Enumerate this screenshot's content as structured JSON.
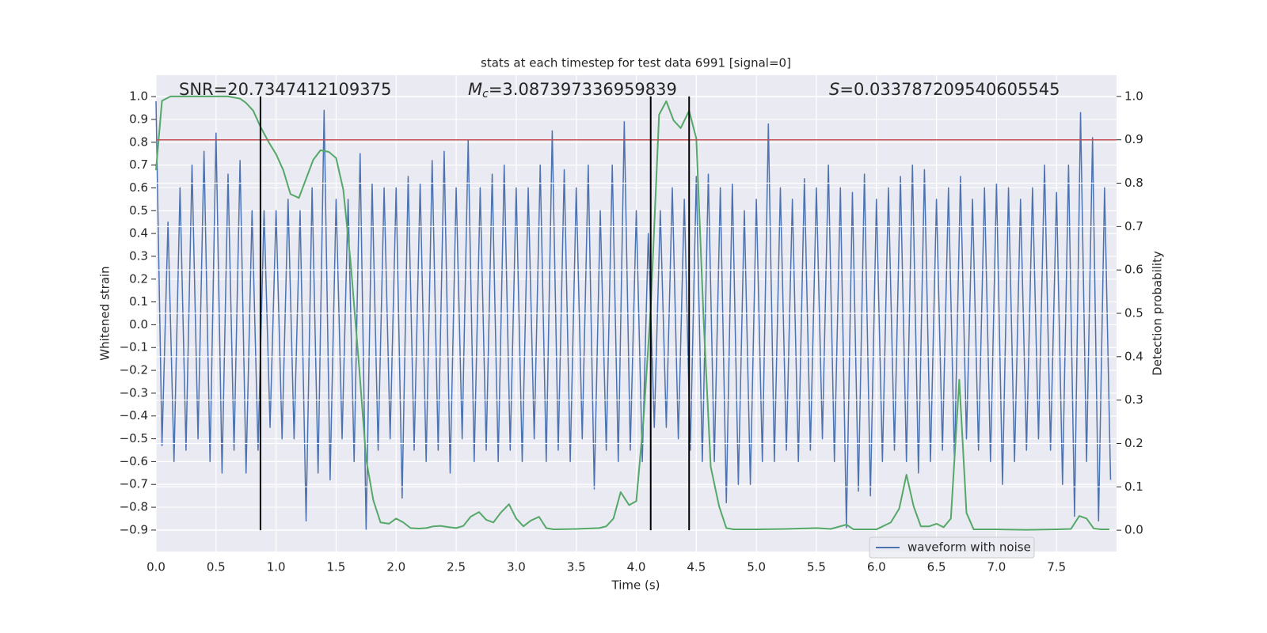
{
  "chart_data": {
    "type": "line",
    "title": "stats at each timestep for test data 6991 [signal=0]",
    "xlabel": "Time (s)",
    "ylabel": "Whitened strain",
    "y2label": "Detection probability",
    "annotations": [
      {
        "text": "SNR=20.7347412109375"
      },
      {
        "symbol": "M",
        "subscript": "c",
        "text": "=3.087397336959839"
      },
      {
        "symbol": "S",
        "text": "=0.033787209540605545"
      }
    ],
    "xlim": [
      0,
      7.9998
    ],
    "ylim": [
      -0.994,
      1.094
    ],
    "y2lim": [
      -0.049,
      1.049
    ],
    "grid": true,
    "legend": "lower right",
    "xticks": [
      {
        "value": 0,
        "label": "0.0"
      },
      0.5,
      {
        "value": 1,
        "label": "1.0"
      },
      1.5,
      {
        "value": 2,
        "label": "2.0"
      },
      2.5,
      {
        "value": 3,
        "label": "3.0"
      },
      3.5,
      {
        "value": 4,
        "label": "4.0"
      },
      4.5,
      {
        "value": 5,
        "label": "5.0"
      },
      5.5,
      {
        "value": 6,
        "label": "6.0"
      },
      6.5,
      {
        "value": 7,
        "label": "7.0"
      },
      7.5
    ],
    "yticks": [
      {
        "value": 1,
        "label": "1.0"
      },
      0.9,
      0.8,
      0.7,
      0.6,
      0.5,
      0.4,
      0.3,
      0.2,
      0.1,
      {
        "value": 0,
        "label": "0.0"
      },
      {
        "value": -0.1,
        "label": "−0.1"
      },
      {
        "value": -0.2,
        "label": "−0.2"
      },
      {
        "value": -0.3,
        "label": "−0.3"
      },
      {
        "value": -0.4,
        "label": "−0.4"
      },
      {
        "value": -0.5,
        "label": "−0.5"
      },
      {
        "value": -0.6,
        "label": "−0.6"
      },
      {
        "value": -0.7,
        "label": "−0.7"
      },
      {
        "value": -0.8,
        "label": "−0.8"
      },
      {
        "value": -0.9,
        "label": "−0.9"
      }
    ],
    "y2ticks": [
      {
        "value": 0,
        "label": "0.0"
      },
      0.1,
      0.2,
      0.3,
      0.4,
      0.5,
      0.6,
      0.7,
      0.8,
      0.9,
      {
        "value": 1,
        "label": "1.0"
      }
    ],
    "hline": {
      "value": 0.9,
      "axis": "y2",
      "color": "#c44e52"
    },
    "vlines": {
      "x": [
        0.87,
        4.12,
        4.44
      ],
      "ymin": 0,
      "ymax": 1,
      "axis": "y2",
      "color": "#000000"
    },
    "series": [
      {
        "name": "waveform with noise",
        "color": "#4c72b0",
        "x": [
          0,
          0.05,
          0.1,
          0.15,
          0.2,
          0.25,
          0.3,
          0.35,
          0.4,
          0.45,
          0.5,
          0.55,
          0.6,
          0.65,
          0.7,
          0.75,
          0.8,
          0.85,
          0.9,
          0.95,
          1,
          1.05,
          1.1,
          1.15,
          1.2,
          1.25,
          1.3,
          1.35,
          1.4,
          1.45,
          1.5,
          1.55,
          1.6,
          1.65,
          1.7,
          1.75,
          1.8,
          1.85,
          1.9,
          1.95,
          2,
          2.05,
          2.1,
          2.15,
          2.2,
          2.25,
          2.3,
          2.35,
          2.4,
          2.45,
          2.5,
          2.55,
          2.6,
          2.65,
          2.7,
          2.75,
          2.8,
          2.85,
          2.9,
          2.95,
          3,
          3.05,
          3.1,
          3.15,
          3.2,
          3.25,
          3.3,
          3.35,
          3.4,
          3.45,
          3.5,
          3.55,
          3.6,
          3.65,
          3.7,
          3.75,
          3.8,
          3.85,
          3.9,
          3.95,
          4,
          4.05,
          4.1,
          4.15,
          4.2,
          4.25,
          4.3,
          4.35,
          4.4,
          4.45,
          4.5,
          4.55,
          4.6,
          4.65,
          4.7,
          4.75,
          4.8,
          4.85,
          4.9,
          4.95,
          5,
          5.05,
          5.1,
          5.15,
          5.2,
          5.25,
          5.3,
          5.35,
          5.4,
          5.45,
          5.5,
          5.55,
          5.6,
          5.65,
          5.7,
          5.75,
          5.8,
          5.85,
          5.9,
          5.95,
          6,
          6.05,
          6.1,
          6.15,
          6.2,
          6.25,
          6.3,
          6.35,
          6.4,
          6.45,
          6.5,
          6.55,
          6.6,
          6.65,
          6.7,
          6.75,
          6.8,
          6.85,
          6.9,
          6.95,
          7,
          7.05,
          7.1,
          7.15,
          7.2,
          7.25,
          7.3,
          7.35,
          7.4,
          7.45,
          7.5,
          7.55,
          7.6,
          7.65,
          7.7,
          7.75,
          7.8,
          7.85,
          7.9,
          7.95
        ],
        "values": [
          0.98,
          -0.53,
          0.45,
          -0.6,
          0.6,
          -0.55,
          0.7,
          -0.5,
          0.76,
          -0.6,
          0.84,
          -0.65,
          0.66,
          -0.55,
          0.72,
          -0.65,
          0.5,
          -0.55,
          0.5,
          -0.45,
          0.5,
          -0.5,
          0.55,
          -0.5,
          0.5,
          -0.86,
          0.6,
          -0.65,
          0.94,
          -0.68,
          0.55,
          -0.5,
          0.55,
          -0.6,
          0.75,
          -0.9,
          0.62,
          -0.55,
          0.6,
          -0.5,
          0.6,
          -0.76,
          0.65,
          -0.55,
          0.62,
          -0.6,
          0.72,
          -0.55,
          0.76,
          -0.65,
          0.6,
          -0.5,
          0.81,
          -0.6,
          0.6,
          -0.55,
          0.66,
          -0.6,
          0.7,
          -0.55,
          0.6,
          -0.6,
          0.6,
          -0.5,
          0.7,
          -0.6,
          0.85,
          -0.55,
          0.68,
          -0.6,
          0.6,
          -0.5,
          0.7,
          -0.72,
          0.5,
          -0.55,
          0.7,
          -0.6,
          0.89,
          -0.55,
          0.5,
          -0.6,
          0.4,
          -0.45,
          0.5,
          -0.45,
          0.6,
          -0.5,
          0.55,
          -0.55,
          0.65,
          -0.6,
          0.66,
          -0.6,
          0.6,
          -0.78,
          0.62,
          -0.7,
          0.5,
          -0.7,
          0.55,
          -0.6,
          0.88,
          -0.6,
          0.6,
          -0.55,
          0.55,
          -0.6,
          0.64,
          -0.55,
          0.6,
          -0.5,
          0.7,
          -0.6,
          0.6,
          -0.89,
          0.58,
          -0.73,
          0.66,
          -0.75,
          0.55,
          -0.6,
          0.6,
          -0.55,
          0.65,
          -0.6,
          0.7,
          -0.65,
          0.68,
          -0.6,
          0.55,
          -0.55,
          0.6,
          -0.6,
          0.65,
          -0.5,
          0.55,
          -0.55,
          0.6,
          -0.6,
          0.62,
          -0.7,
          0.6,
          -0.6,
          0.55,
          -0.55,
          0.6,
          -0.5,
          0.7,
          -0.55,
          0.58,
          -0.7,
          0.7,
          -0.84,
          0.93,
          -0.6,
          0.82,
          -0.86,
          0.6,
          -0.68
        ]
      },
      {
        "color": "#55a868",
        "axis": "y2",
        "x": [
          0,
          0.05,
          0.12,
          0.2,
          0.3,
          0.4,
          0.5,
          0.6,
          0.7,
          0.75,
          0.81,
          0.87,
          0.94,
          1.0,
          1.06,
          1.12,
          1.19,
          1.25,
          1.31,
          1.37,
          1.44,
          1.5,
          1.56,
          1.62,
          1.69,
          1.75,
          1.81,
          1.87,
          1.94,
          2.0,
          2.06,
          2.12,
          2.19,
          2.25,
          2.31,
          2.37,
          2.44,
          2.5,
          2.56,
          2.62,
          2.69,
          2.75,
          2.81,
          2.87,
          2.94,
          3.0,
          3.06,
          3.12,
          3.19,
          3.25,
          3.31,
          3.5,
          3.69,
          3.75,
          3.81,
          3.87,
          3.94,
          4.0,
          4.06,
          4.12,
          4.19,
          4.25,
          4.31,
          4.37,
          4.44,
          4.5,
          4.56,
          4.62,
          4.69,
          4.75,
          4.81,
          5.0,
          5.25,
          5.5,
          5.62,
          5.75,
          5.81,
          6.0,
          6.12,
          6.19,
          6.25,
          6.31,
          6.37,
          6.44,
          6.5,
          6.56,
          6.62,
          6.69,
          6.75,
          6.81,
          7.0,
          7.25,
          7.5,
          7.62,
          7.69,
          7.75,
          7.81,
          7.87,
          7.94
        ],
        "values": [
          0.83,
          0.99,
          1.0,
          1.0,
          1.0,
          1.0,
          1.0,
          1.0,
          0.995,
          0.985,
          0.967,
          0.93,
          0.894,
          0.867,
          0.83,
          0.775,
          0.766,
          0.81,
          0.854,
          0.876,
          0.872,
          0.858,
          0.785,
          0.62,
          0.383,
          0.164,
          0.069,
          0.018,
          0.015,
          0.027,
          0.018,
          0.005,
          0.004,
          0.005,
          0.009,
          0.01,
          0.007,
          0.005,
          0.01,
          0.031,
          0.042,
          0.024,
          0.018,
          0.04,
          0.06,
          0.027,
          0.009,
          0.022,
          0.031,
          0.005,
          0.002,
          0.003,
          0.005,
          0.009,
          0.027,
          0.088,
          0.058,
          0.067,
          0.255,
          0.51,
          0.958,
          0.989,
          0.945,
          0.927,
          0.967,
          0.903,
          0.49,
          0.146,
          0.055,
          0.005,
          0.002,
          0.002,
          0.003,
          0.005,
          0.003,
          0.013,
          0.002,
          0.002,
          0.018,
          0.05,
          0.128,
          0.055,
          0.009,
          0.009,
          0.015,
          0.007,
          0.027,
          0.347,
          0.04,
          0.002,
          0.002,
          0.001,
          0.002,
          0.003,
          0.033,
          0.027,
          0.004,
          0.002,
          0.002
        ]
      }
    ]
  }
}
